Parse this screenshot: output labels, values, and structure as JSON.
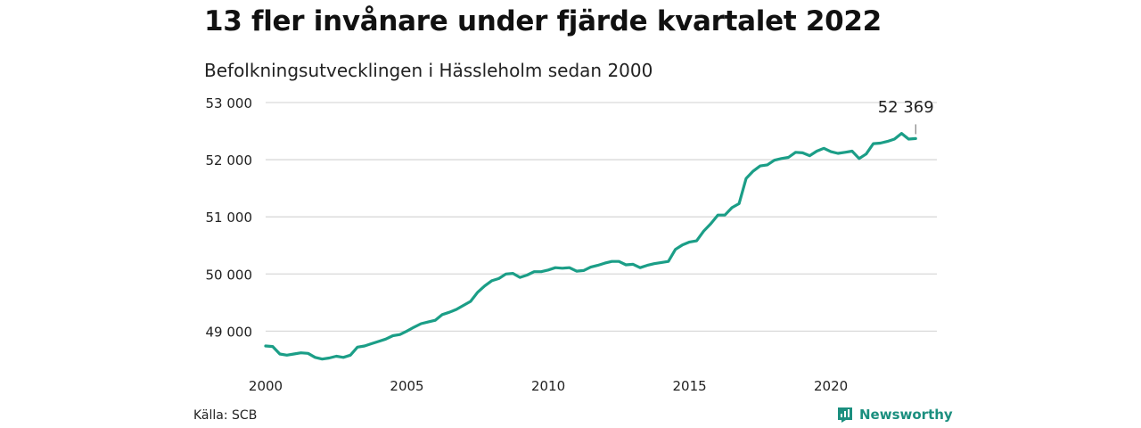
{
  "header": {
    "title": "13 fler invånare under fjärde kvartalet 2022",
    "subtitle": "Befolkningsutvecklingen i Hässleholm sedan 2000"
  },
  "footer": {
    "source": "Källa: SCB",
    "brand": "Newsworthy",
    "brand_icon": "newsworthy-chart-icon"
  },
  "colors": {
    "line": "#1b9e87",
    "grid": "#d9d9d9",
    "brand": "#1b8f7f"
  },
  "chart_data": {
    "type": "line",
    "title": "13 fler invånare under fjärde kvartalet 2022",
    "subtitle": "Befolkningsutvecklingen i Hässleholm sedan 2000",
    "x_ticks": [
      2000,
      2005,
      2010,
      2015,
      2020
    ],
    "x_tick_labels": [
      "2000",
      "2005",
      "2010",
      "2015",
      "2020"
    ],
    "y_ticks": [
      49000,
      50000,
      51000,
      52000,
      53000
    ],
    "y_tick_labels": [
      "49 000",
      "50 000",
      "51 000",
      "52 000",
      "53 000"
    ],
    "ylim": [
      48350,
      53000
    ],
    "xlim": [
      2000,
      2023.75
    ],
    "grid": true,
    "series": [
      {
        "x_start": 2000.0,
        "x_step": 0.25,
        "values": [
          48740,
          48730,
          48600,
          48580,
          48600,
          48620,
          48610,
          48540,
          48510,
          48530,
          48560,
          48540,
          48580,
          48720,
          48740,
          48780,
          48820,
          48860,
          48920,
          48940,
          49000,
          49070,
          49130,
          49160,
          49190,
          49290,
          49330,
          49380,
          49450,
          49520,
          49680,
          49790,
          49880,
          49920,
          50000,
          50010,
          49940,
          49980,
          50040,
          50040,
          50070,
          50110,
          50100,
          50110,
          50050,
          50060,
          50120,
          50150,
          50190,
          50220,
          50220,
          50160,
          50170,
          50110,
          50150,
          50180,
          50200,
          50220,
          50430,
          50510,
          50560,
          50580,
          50750,
          50880,
          51030,
          51030,
          51160,
          51230,
          51670,
          51800,
          51890,
          51910,
          51990,
          52020,
          52040,
          52130,
          52120,
          52070,
          52150,
          52200,
          52140,
          52110,
          52130,
          52150,
          52020,
          52100,
          52280,
          52290,
          52320,
          52360,
          52460,
          52360,
          52369
        ]
      }
    ],
    "annotations": [
      {
        "x": 2023.0,
        "y": 52369,
        "label": "52 369"
      }
    ]
  }
}
